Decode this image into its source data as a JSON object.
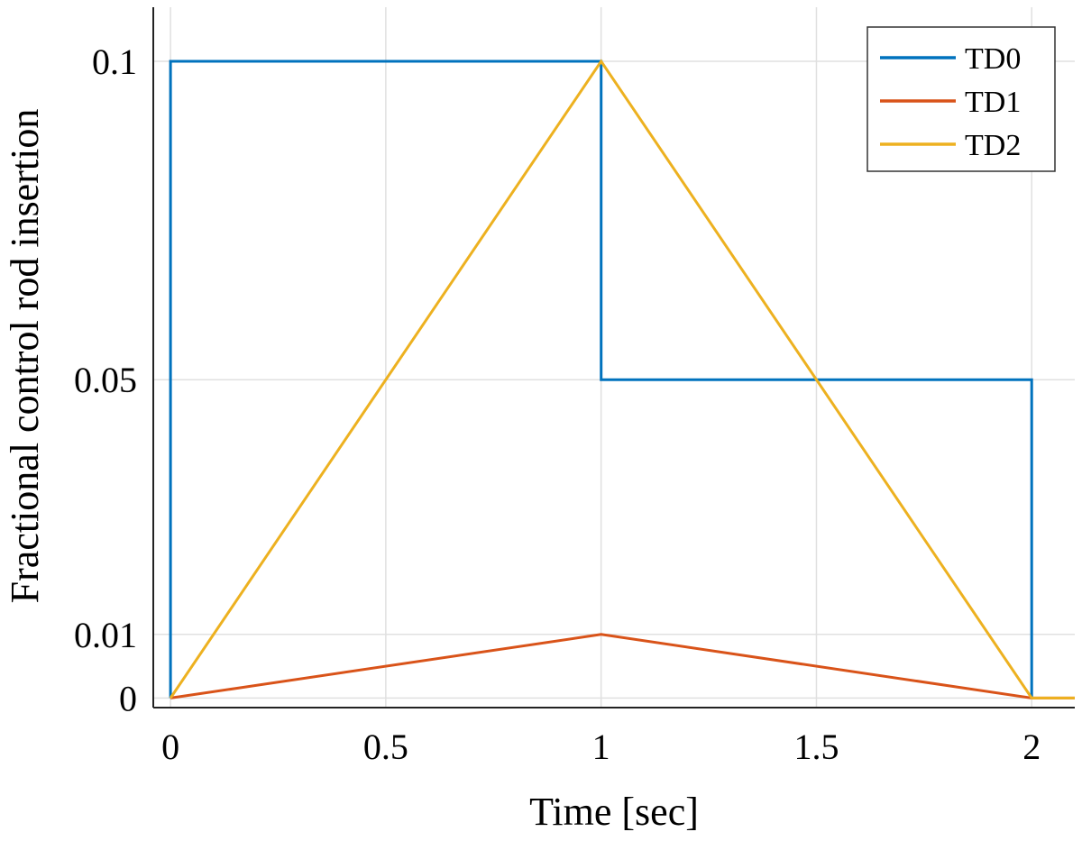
{
  "chart_data": {
    "type": "line",
    "title": "",
    "xlabel": "Time [sec]",
    "ylabel": "Fractional control rod insertion",
    "xlim": [
      -0.04,
      2.1
    ],
    "ylim": [
      -0.0015,
      0.1085
    ],
    "x_ticks": [
      0,
      0.5,
      1,
      1.5,
      2
    ],
    "x_tick_labels": [
      "0",
      "0.5",
      "1",
      "1.5",
      "2"
    ],
    "y_ticks": [
      0,
      0.01,
      0.05,
      0.1
    ],
    "y_tick_labels": [
      "0",
      "0.01",
      "0.05",
      "0.1"
    ],
    "grid": true,
    "legend_position": "top-right",
    "series": [
      {
        "name": "TD0",
        "color": "#0072BD",
        "x": [
          0,
          0,
          1,
          1,
          2,
          2
        ],
        "y": [
          0,
          0.1,
          0.1,
          0.05,
          0.05,
          0
        ]
      },
      {
        "name": "TD1",
        "color": "#D95319",
        "x": [
          0,
          1,
          2,
          2.1
        ],
        "y": [
          0,
          0.01,
          0,
          0
        ]
      },
      {
        "name": "TD2",
        "color": "#EDB120",
        "x": [
          0,
          1,
          2,
          2.1
        ],
        "y": [
          0,
          0.1,
          0,
          0
        ]
      }
    ]
  }
}
